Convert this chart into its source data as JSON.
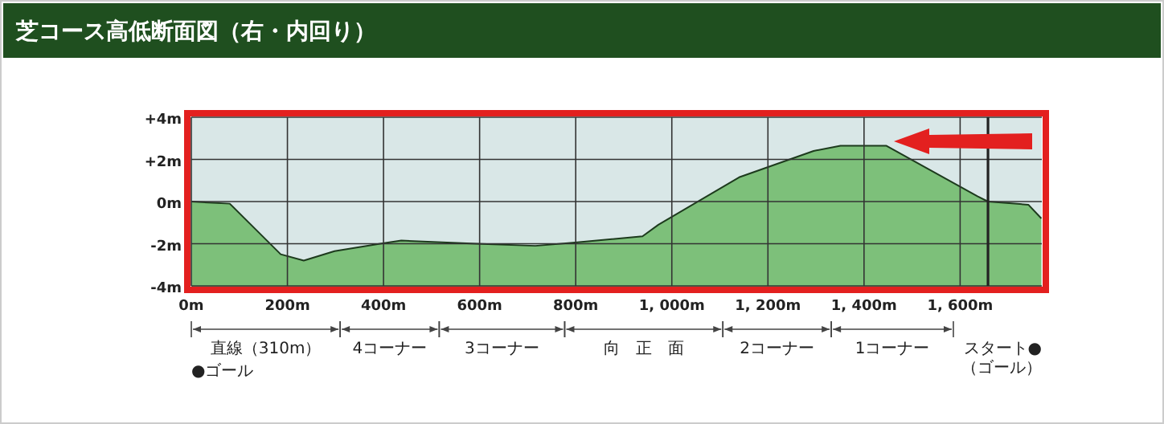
{
  "chart_data": {
    "type": "area",
    "title": "芝コース高低断面図（右・内回り）",
    "x": [
      0,
      80,
      186,
      234,
      298,
      393,
      437,
      593,
      716,
      794,
      939,
      972,
      1140,
      1295,
      1351,
      1446,
      1636,
      1658,
      1742,
      1769
    ],
    "series": [
      {
        "color": "#7dc07a",
        "values": [
          0,
          -0.1,
          -2.5,
          -2.8,
          -2.35,
          -2.0,
          -1.85,
          -2.0,
          -2.1,
          -1.95,
          -1.65,
          -1.1,
          1.15,
          2.4,
          2.65,
          2.65,
          0.25,
          0,
          -0.15,
          -0.8
        ]
      }
    ],
    "xlim": [
      0,
      1770
    ],
    "xticks": [
      {
        "value": 0,
        "label": "0m"
      },
      {
        "value": 200,
        "label": "200m"
      },
      {
        "value": 400,
        "label": "400m"
      },
      {
        "value": 600,
        "label": "600m"
      },
      {
        "value": 800,
        "label": "800m"
      },
      {
        "value": 1000,
        "label": "1, 000m"
      },
      {
        "value": 1200,
        "label": "1, 200m"
      },
      {
        "value": 1400,
        "label": "1, 400m"
      },
      {
        "value": 1600,
        "label": "1, 600m"
      }
    ],
    "ylim": [
      -4,
      4
    ],
    "yticks": [
      {
        "value": 4,
        "label": "+4m"
      },
      {
        "value": 2,
        "label": "+2m"
      },
      {
        "value": 0,
        "label": "0m"
      },
      {
        "value": -2,
        "label": "-2m"
      },
      {
        "value": -4,
        "label": "-4m"
      }
    ],
    "grid": true,
    "ref_lines": [
      {
        "axis": "x",
        "value": 1658,
        "color": "#222222"
      }
    ],
    "annotations": [
      "直線（310m）",
      "4コーナー",
      "3コーナー",
      "向　正　面",
      "2コーナー",
      "1コーナー",
      "●ゴール",
      "スタート●\n（ゴール）"
    ]
  }
}
